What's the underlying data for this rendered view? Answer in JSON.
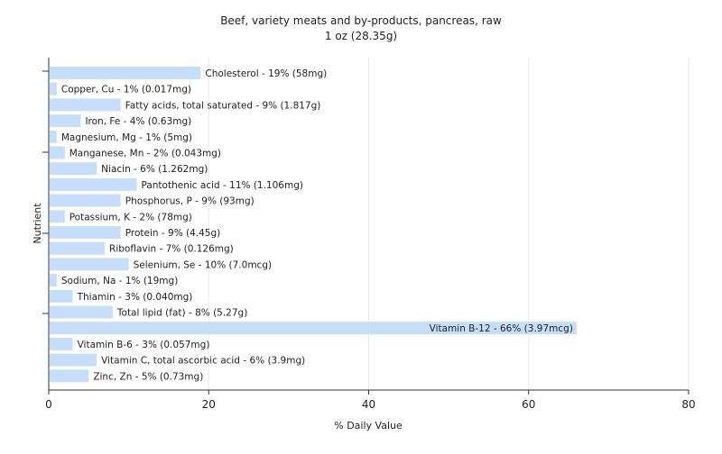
{
  "chart_data": {
    "type": "bar",
    "orientation": "horizontal",
    "title": "Beef, variety meats and by-products, pancreas, raw",
    "subtitle": "1 oz (28.35g)",
    "xlabel": "% Daily Value",
    "ylabel": "Nutrient",
    "xlim": [
      0,
      80
    ],
    "xticks": [
      0,
      20,
      40,
      60,
      80
    ],
    "grid": true,
    "legend": "none",
    "bar_color": "#c6defa",
    "grid_color": "#e8e8e8",
    "axis_color": "#333333",
    "bars": [
      {
        "label": "Cholesterol - 19% (58mg)",
        "value": 19
      },
      {
        "label": "Copper, Cu - 1% (0.017mg)",
        "value": 1
      },
      {
        "label": "Fatty acids, total saturated - 9% (1.817g)",
        "value": 9
      },
      {
        "label": "Iron, Fe - 4% (0.63mg)",
        "value": 4
      },
      {
        "label": "Magnesium, Mg - 1% (5mg)",
        "value": 1
      },
      {
        "label": "Manganese, Mn - 2% (0.043mg)",
        "value": 2
      },
      {
        "label": "Niacin - 6% (1.262mg)",
        "value": 6
      },
      {
        "label": "Pantothenic acid - 11% (1.106mg)",
        "value": 11
      },
      {
        "label": "Phosphorus, P - 9% (93mg)",
        "value": 9
      },
      {
        "label": "Potassium, K - 2% (78mg)",
        "value": 2
      },
      {
        "label": "Protein - 9% (4.45g)",
        "value": 9
      },
      {
        "label": "Riboflavin - 7% (0.126mg)",
        "value": 7
      },
      {
        "label": "Selenium, Se - 10% (7.0mcg)",
        "value": 10
      },
      {
        "label": "Sodium, Na - 1% (19mg)",
        "value": 1
      },
      {
        "label": "Thiamin - 3% (0.040mg)",
        "value": 3
      },
      {
        "label": "Total lipid (fat) - 8% (5.27g)",
        "value": 8
      },
      {
        "label": "Vitamin B-12 - 66% (3.97mcg)",
        "value": 66
      },
      {
        "label": "Vitamin B-6 - 3% (0.057mg)",
        "value": 3
      },
      {
        "label": "Vitamin C, total ascorbic acid - 6% (3.9mg)",
        "value": 6
      },
      {
        "label": "Zinc, Zn - 5% (0.73mg)",
        "value": 5
      }
    ]
  }
}
